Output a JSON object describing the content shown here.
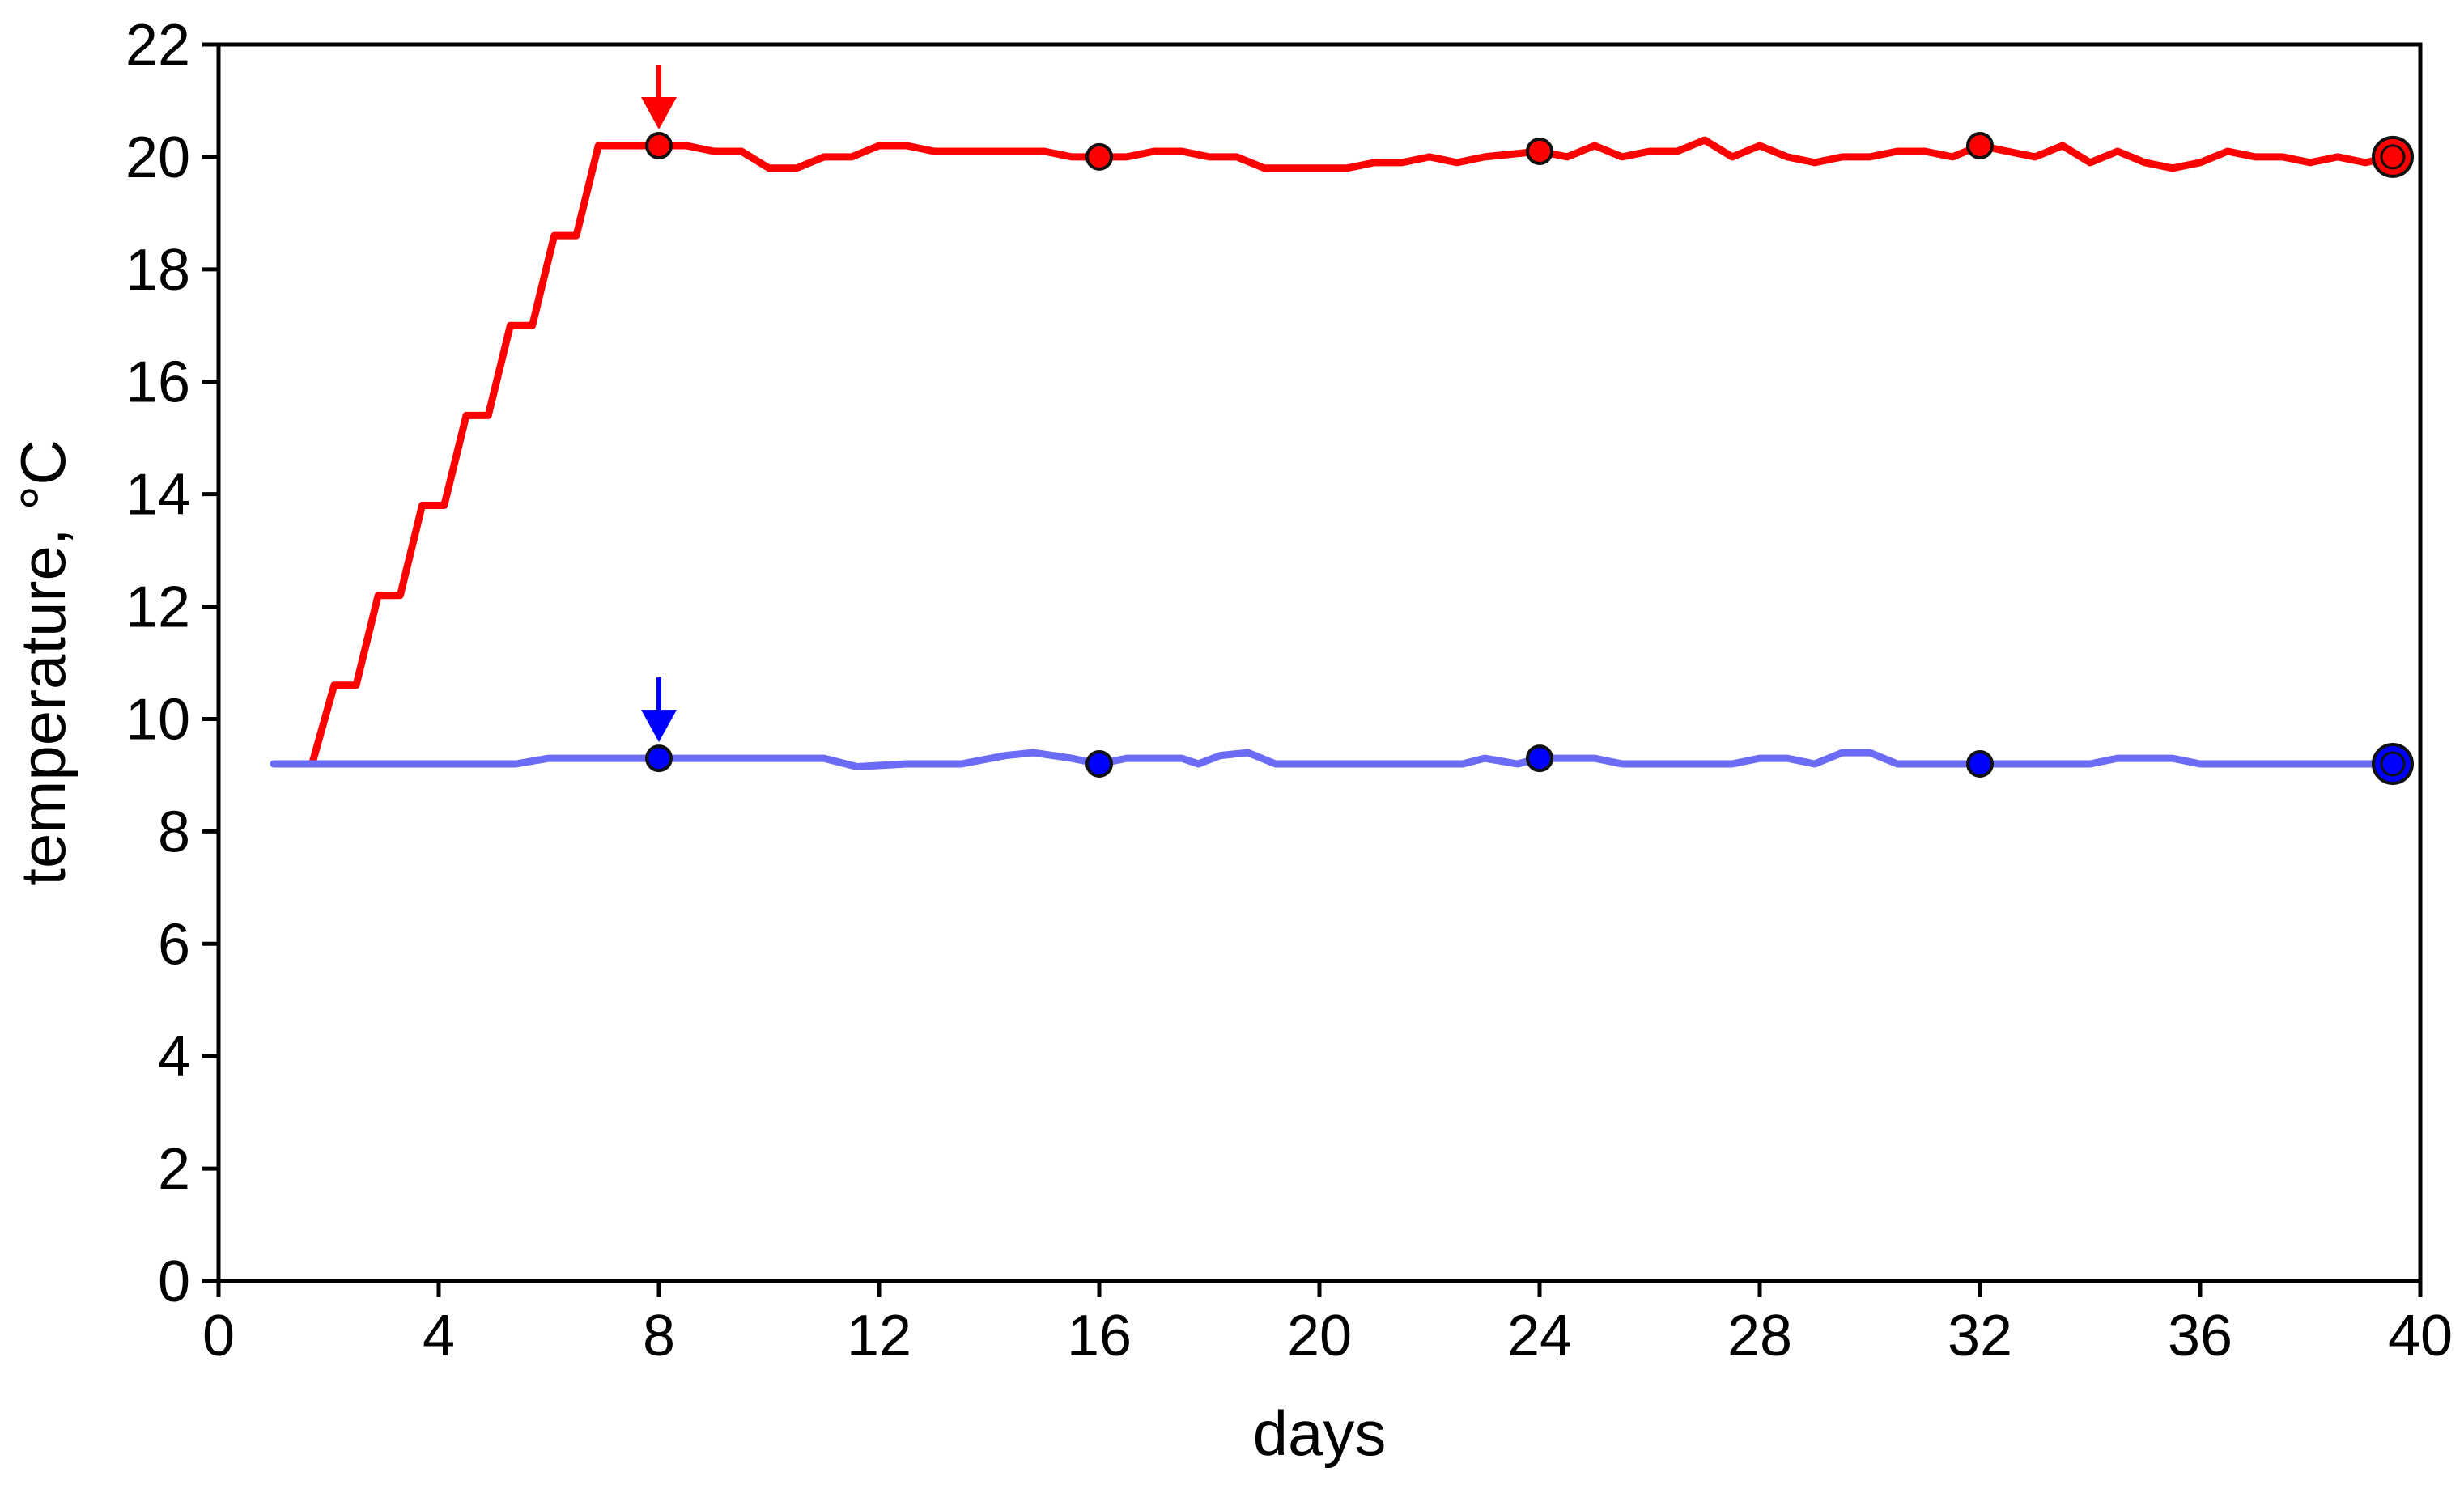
{
  "chart_data": {
    "type": "line",
    "xlabel": "days",
    "ylabel": "temperature, °C",
    "xlim": [
      0,
      40
    ],
    "ylim": [
      0,
      22
    ],
    "xticks": [
      0,
      4,
      8,
      12,
      16,
      20,
      24,
      28,
      32,
      36,
      40
    ],
    "yticks": [
      0,
      2,
      4,
      6,
      8,
      10,
      12,
      14,
      16,
      18,
      20,
      22
    ],
    "grid": false,
    "legend": "none",
    "series": [
      {
        "color": "#ff0000",
        "x": [
          1.7,
          2.1,
          2.5,
          2.9,
          3.3,
          3.7,
          4.1,
          4.5,
          4.9,
          5.3,
          5.7,
          6.1,
          6.5,
          6.9,
          7.3,
          7.7,
          8.0,
          8.5,
          9.0,
          9.5,
          10.0,
          10.5,
          11.0,
          11.5,
          12.0,
          12.5,
          13.0,
          14.0,
          15.0,
          15.5,
          16.0,
          16.5,
          17.0,
          17.5,
          18.0,
          18.5,
          19.0,
          19.5,
          20.0,
          20.5,
          21.0,
          21.5,
          22.0,
          22.5,
          23.0,
          24.0,
          24.5,
          25.0,
          25.5,
          26.0,
          26.5,
          27.0,
          27.5,
          28.0,
          28.5,
          29.0,
          29.5,
          30.0,
          30.5,
          31.0,
          31.5,
          32.0,
          32.5,
          33.0,
          33.5,
          34.0,
          34.5,
          35.0,
          35.5,
          36.0,
          36.5,
          37.0,
          37.5,
          38.0,
          38.5,
          39.0,
          39.5
        ],
        "y": [
          9.2,
          10.6,
          10.6,
          12.2,
          12.2,
          13.8,
          13.8,
          15.4,
          15.4,
          17.0,
          17.0,
          18.6,
          18.6,
          20.2,
          20.2,
          20.2,
          20.2,
          20.2,
          20.1,
          20.1,
          19.8,
          19.8,
          20.0,
          20.0,
          20.2,
          20.2,
          20.1,
          20.1,
          20.1,
          20.0,
          20.0,
          20.0,
          20.1,
          20.1,
          20.0,
          20.0,
          19.8,
          19.8,
          19.8,
          19.8,
          19.9,
          19.9,
          20.0,
          19.9,
          20.0,
          20.1,
          20.0,
          20.2,
          20.0,
          20.1,
          20.1,
          20.3,
          20.0,
          20.2,
          20.0,
          19.9,
          20.0,
          20.0,
          20.1,
          20.1,
          20.0,
          20.2,
          20.1,
          20.0,
          20.2,
          19.9,
          20.1,
          19.9,
          19.8,
          19.9,
          20.1,
          20.0,
          20.0,
          19.9,
          20.0,
          19.9,
          20.0
        ],
        "markers": [
          {
            "x": 8,
            "y": 20.2
          },
          {
            "x": 16,
            "y": 20.0
          },
          {
            "x": 24,
            "y": 20.1
          },
          {
            "x": 32,
            "y": 20.2
          }
        ],
        "end_marker": {
          "x": 39.5,
          "y": 20.0
        },
        "arrow_x": 8
      },
      {
        "color": "#6b6bf5",
        "marker_color": "#0000ff",
        "x": [
          1.0,
          1.5,
          2.0,
          3.0,
          4.0,
          5.4,
          6.0,
          7.0,
          8.0,
          9.0,
          10.0,
          11.0,
          11.6,
          12.5,
          13.5,
          14.3,
          14.8,
          15.5,
          16.0,
          16.5,
          17.5,
          17.8,
          18.2,
          18.7,
          19.2,
          20.0,
          21.0,
          22.0,
          22.6,
          23.0,
          23.6,
          24.0,
          24.5,
          25.0,
          25.5,
          26.0,
          27.0,
          27.5,
          28.0,
          28.5,
          29.0,
          29.5,
          30.0,
          30.5,
          31.0,
          32.0,
          33.0,
          34.0,
          34.5,
          35.0,
          35.5,
          36.0,
          37.0,
          38.0,
          39.0,
          39.5
        ],
        "y": [
          9.2,
          9.2,
          9.2,
          9.2,
          9.2,
          9.2,
          9.3,
          9.3,
          9.3,
          9.3,
          9.3,
          9.3,
          9.15,
          9.2,
          9.2,
          9.35,
          9.4,
          9.3,
          9.2,
          9.3,
          9.3,
          9.2,
          9.35,
          9.4,
          9.2,
          9.2,
          9.2,
          9.2,
          9.2,
          9.3,
          9.2,
          9.3,
          9.3,
          9.3,
          9.2,
          9.2,
          9.2,
          9.2,
          9.3,
          9.3,
          9.2,
          9.4,
          9.4,
          9.2,
          9.2,
          9.2,
          9.2,
          9.2,
          9.3,
          9.3,
          9.3,
          9.2,
          9.2,
          9.2,
          9.2,
          9.2
        ],
        "markers": [
          {
            "x": 8,
            "y": 9.3
          },
          {
            "x": 16,
            "y": 9.2
          },
          {
            "x": 24,
            "y": 9.3
          },
          {
            "x": 32,
            "y": 9.2
          }
        ],
        "end_marker": {
          "x": 39.5,
          "y": 9.2
        },
        "arrow_x": 8
      }
    ]
  }
}
